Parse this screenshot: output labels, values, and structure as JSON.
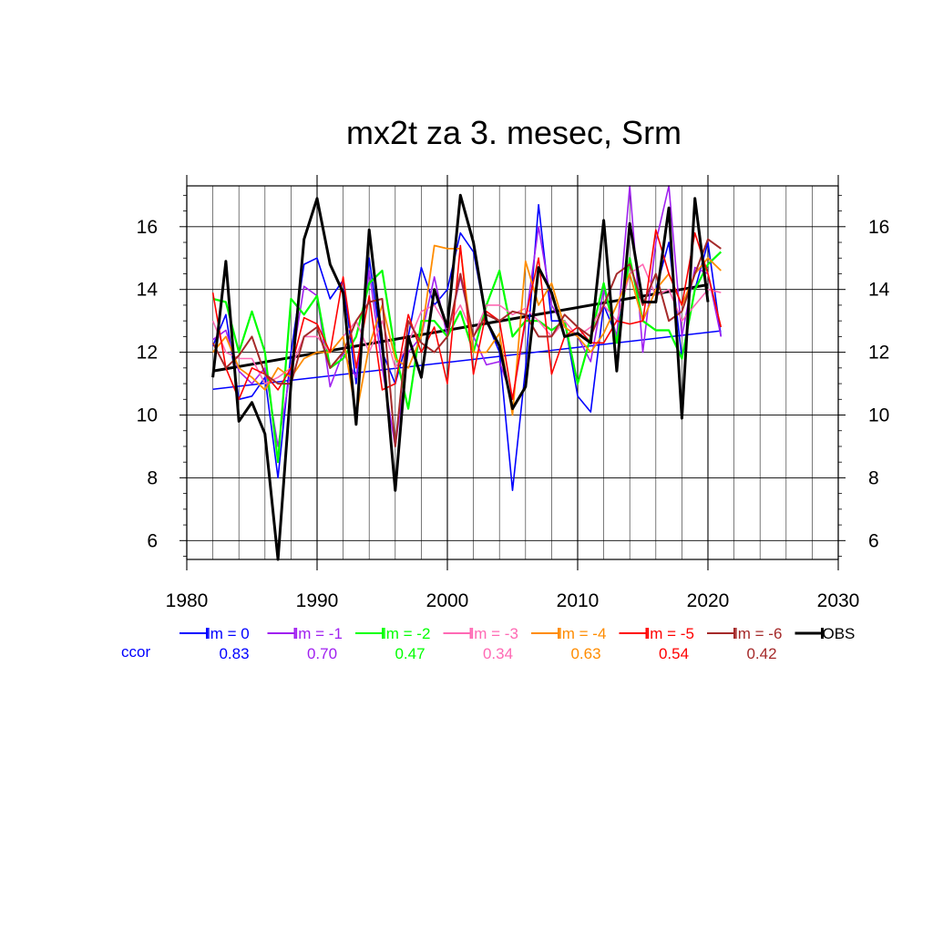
{
  "chart_data": {
    "type": "line",
    "title": "mx2t za 3. mesec, Srm",
    "xlabel": "",
    "ylabel": "",
    "xlim": [
      1980,
      2030
    ],
    "ylim": [
      5.4,
      17.3
    ],
    "x_ticks": [
      1980,
      1990,
      2000,
      2010,
      2020,
      2030
    ],
    "y_ticks": [
      6,
      8,
      10,
      12,
      14,
      16
    ],
    "x": [
      1982,
      1983,
      1984,
      1985,
      1986,
      1987,
      1988,
      1989,
      1990,
      1991,
      1992,
      1993,
      1994,
      1995,
      1996,
      1997,
      1998,
      1999,
      2000,
      2001,
      2002,
      2003,
      2004,
      2005,
      2006,
      2007,
      2008,
      2009,
      2010,
      2011,
      2012,
      2013,
      2014,
      2015,
      2016,
      2017,
      2018,
      2019,
      2020,
      2021
    ],
    "grid": true,
    "legend_position": "bottom",
    "ccor_label": "ccor",
    "series": [
      {
        "name": "lm = 0",
        "color": "#0000ff",
        "ccor": "0.83",
        "width": 1.6,
        "values": [
          12.2,
          13.2,
          10.5,
          10.6,
          11.2,
          8.0,
          12.0,
          14.8,
          15.0,
          13.7,
          14.3,
          11.0,
          15.0,
          12.0,
          11.0,
          12.5,
          14.7,
          13.5,
          14.0,
          15.8,
          15.2,
          13.0,
          12.0,
          7.6,
          11.5,
          16.7,
          13.0,
          13.0,
          10.6,
          10.1,
          13.5,
          12.5,
          15.0,
          13.0,
          14.0,
          15.5,
          11.8,
          14.0,
          15.5,
          12.5
        ],
        "trend": [
          10.82,
          12.68
        ]
      },
      {
        "name": "lm = -1",
        "color": "#a020f0",
        "ccor": "0.70",
        "width": 1.6,
        "values": [
          12.4,
          12.7,
          11.4,
          11.0,
          11.5,
          9.0,
          11.5,
          14.1,
          13.8,
          10.9,
          12.0,
          11.2,
          14.6,
          11.5,
          9.0,
          12.0,
          12.5,
          14.4,
          12.5,
          14.4,
          12.5,
          11.6,
          11.7,
          10.5,
          13.0,
          16.0,
          13.5,
          12.8,
          12.5,
          11.7,
          14.0,
          12.5,
          17.3,
          12.0,
          15.5,
          17.3,
          12.5,
          14.7,
          14.5,
          12.5
        ]
      },
      {
        "name": "lm = -2",
        "color": "#00ff00",
        "ccor": "0.47",
        "width": 2.2,
        "values": [
          13.7,
          13.6,
          12.0,
          13.3,
          12.0,
          8.5,
          13.7,
          13.2,
          13.8,
          11.5,
          11.8,
          12.5,
          14.2,
          14.6,
          12.0,
          10.2,
          13.0,
          13.0,
          12.5,
          13.3,
          12.0,
          13.5,
          14.6,
          12.5,
          13.0,
          13.0,
          12.7,
          13.0,
          11.0,
          12.5,
          14.2,
          12.3,
          15.0,
          13.0,
          12.7,
          12.7,
          11.8,
          14.0,
          14.8,
          15.2
        ]
      },
      {
        "name": "lm = -3",
        "color": "#ff69b4",
        "ccor": "0.34",
        "width": 1.6,
        "values": [
          13.0,
          12.0,
          11.8,
          11.8,
          11.0,
          11.2,
          11.5,
          12.5,
          12.5,
          12.0,
          12.5,
          13.0,
          12.0,
          13.0,
          11.5,
          12.3,
          13.3,
          13.5,
          12.8,
          13.5,
          12.5,
          13.5,
          13.5,
          13.2,
          13.4,
          13.0,
          12.5,
          13.0,
          12.5,
          12.8,
          13.5,
          13.0,
          14.5,
          14.8,
          13.8,
          14.0,
          13.0,
          13.5,
          14.0,
          13.9
        ]
      },
      {
        "name": "lm = -4",
        "color": "#ff8c00",
        "ccor": "0.63",
        "width": 1.8,
        "values": [
          12.0,
          12.5,
          11.5,
          11.2,
          10.8,
          11.5,
          11.2,
          11.8,
          12.0,
          12.0,
          12.5,
          10.0,
          12.2,
          13.5,
          11.8,
          11.5,
          12.5,
          15.4,
          15.3,
          15.3,
          12.0,
          12.0,
          12.6,
          10.0,
          14.9,
          13.5,
          14.2,
          12.8,
          12.5,
          12.0,
          12.6,
          13.5,
          14.5,
          13.0,
          14.0,
          14.5,
          13.5,
          14.5,
          15.0,
          14.6
        ]
      },
      {
        "name": "lm = -5",
        "color": "#ff0000",
        "ccor": "0.54",
        "width": 1.6,
        "values": [
          13.9,
          11.5,
          10.5,
          11.5,
          11.3,
          10.8,
          11.5,
          13.1,
          12.9,
          12.0,
          14.4,
          11.5,
          13.8,
          10.8,
          11.0,
          13.2,
          12.0,
          12.8,
          11.0,
          15.4,
          11.3,
          13.3,
          13.0,
          10.5,
          13.1,
          15.0,
          11.3,
          12.5,
          12.8,
          12.3,
          12.3,
          13.0,
          12.9,
          13.0,
          15.9,
          14.5,
          13.5,
          15.8,
          14.5,
          12.8
        ]
      },
      {
        "name": "lm = -6",
        "color": "#a52a2a",
        "ccor": "0.42",
        "width": 2.0,
        "values": [
          12.3,
          11.5,
          11.9,
          12.5,
          11.3,
          11.0,
          11.0,
          12.5,
          12.8,
          11.5,
          12.0,
          13.0,
          13.6,
          13.7,
          9.0,
          13.0,
          12.3,
          12.0,
          12.5,
          14.5,
          12.5,
          13.2,
          13.0,
          13.3,
          13.2,
          12.5,
          12.5,
          13.2,
          12.8,
          12.5,
          13.5,
          14.5,
          14.8,
          13.5,
          14.5,
          13.0,
          13.3,
          14.5,
          15.6,
          15.3
        ]
      },
      {
        "name": "OBS",
        "color": "#000000",
        "ccor": "",
        "width": 3.0,
        "values": [
          11.2,
          14.9,
          9.8,
          10.4,
          9.4,
          5.4,
          11.0,
          15.6,
          16.9,
          14.8,
          13.9,
          9.7,
          15.9,
          12.3,
          7.6,
          12.5,
          11.2,
          14.0,
          12.8,
          17.0,
          15.5,
          13.0,
          12.2,
          10.2,
          10.9,
          14.7,
          13.9,
          12.5,
          12.6,
          12.3,
          16.2,
          11.4,
          16.1,
          13.6,
          13.6,
          16.6,
          9.9,
          16.9,
          13.6,
          null
        ],
        "trend": [
          11.4,
          14.15
        ]
      }
    ]
  }
}
